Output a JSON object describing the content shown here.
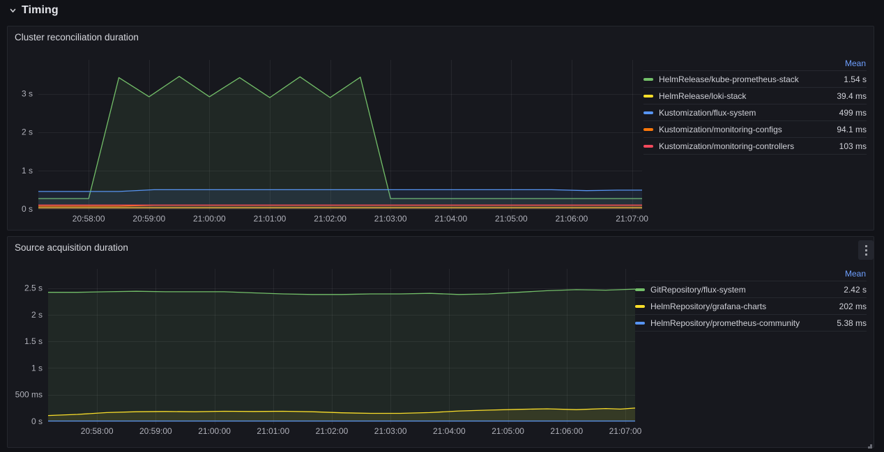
{
  "section": {
    "title": "Timing"
  },
  "icons": {
    "section_chevron": "chevron-down",
    "panel_menu": "kebab-vertical-dots",
    "resize": "corner-grip"
  },
  "colors": {
    "page_bg": "#111217",
    "panel_bg": "#17181E",
    "panel_border": "#25272E",
    "grid": "rgba(204,204,220,0.08)",
    "axis_text": "#b0b1ba",
    "legend_text": "#d0d1d8",
    "mean_header_blue": "#6E9FFF",
    "series_green": "#73BF69",
    "series_yellow": "#FADE2A",
    "series_blue": "#5794F2",
    "series_orange": "#FF780A",
    "series_red": "#F2495C"
  },
  "panels": [
    {
      "title": "Cluster reconciliation duration",
      "has_menu_button": false,
      "legend": {
        "header": "Mean",
        "items": [
          {
            "label": "HelmRelease/kube-prometheus-stack",
            "value": "1.54 s",
            "color": "#73BF69"
          },
          {
            "label": "HelmRelease/loki-stack",
            "value": "39.4 ms",
            "color": "#FADE2A"
          },
          {
            "label": "Kustomization/flux-system",
            "value": "499 ms",
            "color": "#5794F2"
          },
          {
            "label": "Kustomization/monitoring-configs",
            "value": "94.1 ms",
            "color": "#FF780A"
          },
          {
            "label": "Kustomization/monitoring-controllers",
            "value": "103 ms",
            "color": "#F2495C"
          }
        ]
      },
      "chart_data": {
        "type": "line",
        "title": "Cluster reconciliation duration",
        "unit": "seconds",
        "grid": true,
        "legend_position": "right",
        "x_domain": [
          0,
          600
        ],
        "ylim": [
          0,
          3.88
        ],
        "y_ticks": [
          {
            "v": 0,
            "label": "0 s"
          },
          {
            "v": 1,
            "label": "1 s"
          },
          {
            "v": 2,
            "label": "2 s"
          },
          {
            "v": 3,
            "label": "3 s"
          }
        ],
        "x_ticks": [
          {
            "t": 50,
            "label": "20:58:00"
          },
          {
            "t": 110,
            "label": "20:59:00"
          },
          {
            "t": 170,
            "label": "21:00:00"
          },
          {
            "t": 230,
            "label": "21:01:00"
          },
          {
            "t": 290,
            "label": "21:02:00"
          },
          {
            "t": 350,
            "label": "21:03:00"
          },
          {
            "t": 410,
            "label": "21:04:00"
          },
          {
            "t": 470,
            "label": "21:05:00"
          },
          {
            "t": 530,
            "label": "21:06:00"
          },
          {
            "t": 590,
            "label": "21:07:00"
          }
        ],
        "series": [
          {
            "name": "HelmRelease/kube-prometheus-stack",
            "color": "#73BF69",
            "points": [
              [
                0,
                0.27
              ],
              [
                50,
                0.27
              ],
              [
                80,
                3.42
              ],
              [
                110,
                2.92
              ],
              [
                140,
                3.45
              ],
              [
                170,
                2.92
              ],
              [
                200,
                3.42
              ],
              [
                230,
                2.9
              ],
              [
                260,
                3.44
              ],
              [
                290,
                2.9
              ],
              [
                320,
                3.43
              ],
              [
                350,
                0.27
              ],
              [
                600,
                0.27
              ]
            ]
          },
          {
            "name": "HelmRelease/loki-stack",
            "color": "#FADE2A",
            "points": [
              [
                0,
                0.035
              ],
              [
                600,
                0.035
              ]
            ]
          },
          {
            "name": "Kustomization/flux-system",
            "color": "#5794F2",
            "points": [
              [
                0,
                0.455
              ],
              [
                80,
                0.455
              ],
              [
                115,
                0.5
              ],
              [
                510,
                0.5
              ],
              [
                545,
                0.477
              ],
              [
                575,
                0.49
              ],
              [
                600,
                0.49
              ]
            ]
          },
          {
            "name": "Kustomization/monitoring-configs",
            "color": "#FF780A",
            "points": [
              [
                0,
                0.072
              ],
              [
                80,
                0.072
              ],
              [
                115,
                0.098
              ],
              [
                600,
                0.098
              ]
            ]
          },
          {
            "name": "Kustomization/monitoring-controllers",
            "color": "#F2495C",
            "points": [
              [
                0,
                0.102
              ],
              [
                600,
                0.102
              ]
            ]
          }
        ]
      }
    },
    {
      "title": "Source acquisition duration",
      "has_menu_button": true,
      "legend": {
        "header": "Mean",
        "items": [
          {
            "label": "GitRepository/flux-system",
            "value": "2.42 s",
            "color": "#73BF69"
          },
          {
            "label": "HelmRepository/grafana-charts",
            "value": "202 ms",
            "color": "#FADE2A"
          },
          {
            "label": "HelmRepository/prometheus-community",
            "value": "5.38 ms",
            "color": "#5794F2"
          }
        ]
      },
      "chart_data": {
        "type": "line",
        "title": "Source acquisition duration",
        "unit": "seconds",
        "grid": true,
        "legend_position": "right",
        "x_domain": [
          0,
          600
        ],
        "ylim": [
          0,
          2.86
        ],
        "y_ticks": [
          {
            "v": 0,
            "label": "0 s"
          },
          {
            "v": 0.5,
            "label": "500 ms"
          },
          {
            "v": 1,
            "label": "1 s"
          },
          {
            "v": 1.5,
            "label": "1.5 s"
          },
          {
            "v": 2,
            "label": "2 s"
          },
          {
            "v": 2.5,
            "label": "2.5 s"
          }
        ],
        "x_ticks": [
          {
            "t": 50,
            "label": "20:58:00"
          },
          {
            "t": 110,
            "label": "20:59:00"
          },
          {
            "t": 170,
            "label": "21:00:00"
          },
          {
            "t": 230,
            "label": "21:01:00"
          },
          {
            "t": 290,
            "label": "21:02:00"
          },
          {
            "t": 350,
            "label": "21:03:00"
          },
          {
            "t": 410,
            "label": "21:04:00"
          },
          {
            "t": 470,
            "label": "21:05:00"
          },
          {
            "t": 530,
            "label": "21:06:00"
          },
          {
            "t": 590,
            "label": "21:07:00"
          }
        ],
        "series": [
          {
            "name": "GitRepository/flux-system",
            "color": "#73BF69",
            "points": [
              [
                0,
                2.42
              ],
              [
                30,
                2.42
              ],
              [
                60,
                2.43
              ],
              [
                90,
                2.44
              ],
              [
                120,
                2.43
              ],
              [
                150,
                2.43
              ],
              [
                180,
                2.43
              ],
              [
                210,
                2.41
              ],
              [
                240,
                2.39
              ],
              [
                270,
                2.38
              ],
              [
                300,
                2.38
              ],
              [
                330,
                2.39
              ],
              [
                360,
                2.39
              ],
              [
                390,
                2.4
              ],
              [
                420,
                2.38
              ],
              [
                450,
                2.39
              ],
              [
                480,
                2.42
              ],
              [
                510,
                2.45
              ],
              [
                540,
                2.47
              ],
              [
                570,
                2.46
              ],
              [
                585,
                2.47
              ],
              [
                600,
                2.48
              ]
            ]
          },
          {
            "name": "HelmRepository/grafana-charts",
            "color": "#FADE2A",
            "points": [
              [
                0,
                0.11
              ],
              [
                30,
                0.13
              ],
              [
                60,
                0.165
              ],
              [
                90,
                0.18
              ],
              [
                120,
                0.185
              ],
              [
                150,
                0.18
              ],
              [
                180,
                0.19
              ],
              [
                210,
                0.185
              ],
              [
                240,
                0.19
              ],
              [
                270,
                0.18
              ],
              [
                300,
                0.16
              ],
              [
                330,
                0.15
              ],
              [
                360,
                0.15
              ],
              [
                390,
                0.165
              ],
              [
                420,
                0.195
              ],
              [
                450,
                0.21
              ],
              [
                480,
                0.225
              ],
              [
                510,
                0.235
              ],
              [
                540,
                0.22
              ],
              [
                570,
                0.24
              ],
              [
                585,
                0.23
              ],
              [
                600,
                0.25
              ]
            ]
          },
          {
            "name": "HelmRepository/prometheus-community",
            "color": "#5794F2",
            "points": [
              [
                0,
                0.006
              ],
              [
                600,
                0.006
              ]
            ]
          }
        ]
      }
    }
  ]
}
